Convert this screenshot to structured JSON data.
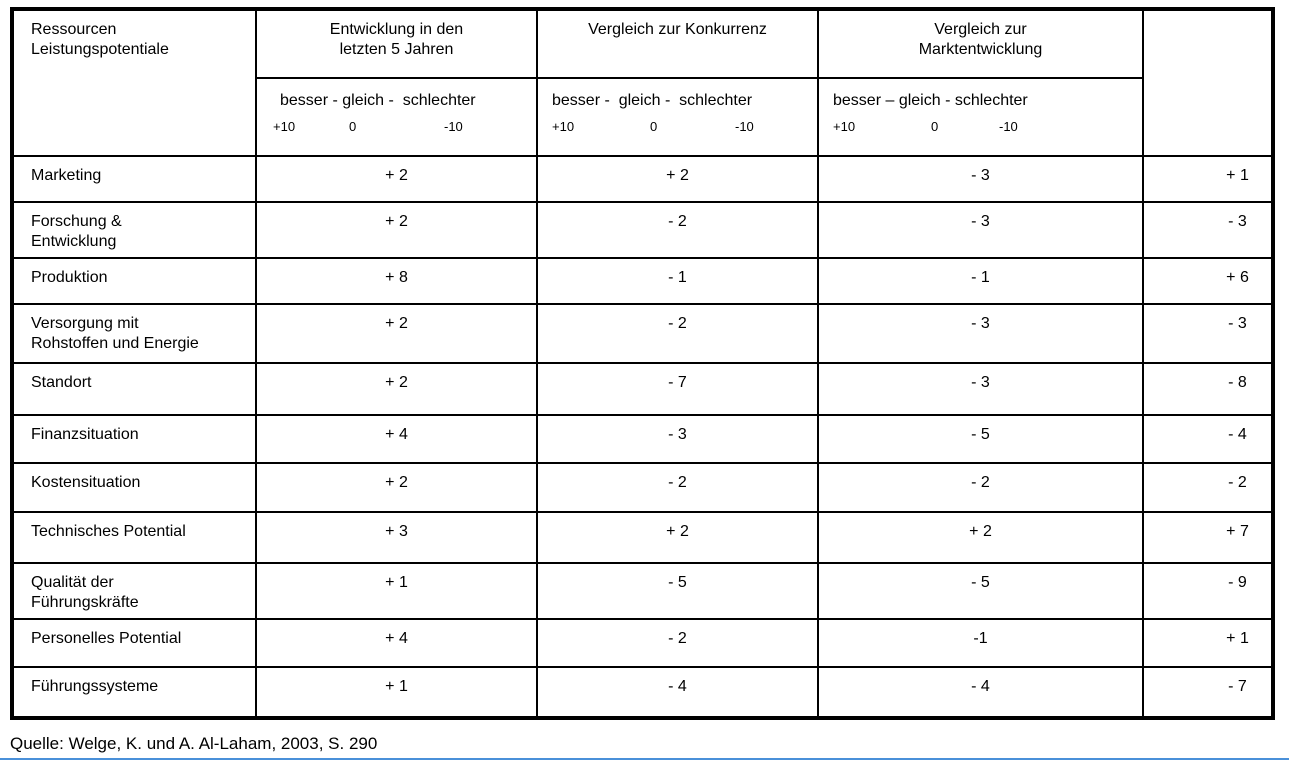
{
  "header": {
    "col1_line1": "Ressourcen",
    "col1_line2": "Leistungspotentiale",
    "col2_line1": "Entwicklung in den",
    "col2_line2": "letzten 5 Jahren",
    "col3_line1": "Vergleich zur Konkurrenz",
    "col4_line1": "Vergleich zur",
    "col4_line2": "Marktentwicklung"
  },
  "scales": {
    "col2": {
      "words": "besser - gleich -  schlechter",
      "plus": "+10",
      "zero": "0",
      "minus": "-10"
    },
    "col3": {
      "words": "besser -  gleich -  schlechter",
      "plus": "+10",
      "zero": "0",
      "minus": "-10"
    },
    "col4": {
      "words": "besser – gleich - schlechter",
      "plus": "+10",
      "zero": "0",
      "minus": "-10"
    }
  },
  "rows": [
    {
      "label": "Marketing",
      "label2": "",
      "v1": "+ 2",
      "v2": "+ 2",
      "v3": "- 3",
      "total": "+ 1"
    },
    {
      "label": "Forschung &",
      "label2": "Entwicklung",
      "v1": "+ 2",
      "v2": "- 2",
      "v3": "- 3",
      "total": "- 3"
    },
    {
      "label": "Produktion",
      "label2": "",
      "v1": "+ 8",
      "v2": "- 1",
      "v3": "- 1",
      "total": "+ 6"
    },
    {
      "label": "Versorgung mit",
      "label2": "Rohstoffen und Energie",
      "v1": "+ 2",
      "v2": "- 2",
      "v3": "- 3",
      "total": "- 3"
    },
    {
      "label": "Standort",
      "label2": "",
      "v1": "+ 2",
      "v2": "- 7",
      "v3": "- 3",
      "total": "- 8"
    },
    {
      "label": "Finanzsituation",
      "label2": "",
      "v1": "+ 4",
      "v2": "- 3",
      "v3": "- 5",
      "total": "- 4"
    },
    {
      "label": "Kostensituation",
      "label2": "",
      "v1": "+ 2",
      "v2": "- 2",
      "v3": "- 2",
      "total": "- 2"
    },
    {
      "label": "Technisches Potential",
      "label2": "",
      "v1": "+ 3",
      "v2": "+ 2",
      "v3": "+ 2",
      "total": "+ 7"
    },
    {
      "label": "Qualität der",
      "label2": "Führungskräfte",
      "v1": "+ 1",
      "v2": "- 5",
      "v3": "- 5",
      "total": "-  9"
    },
    {
      "label": "Personelles Potential",
      "label2": "",
      "v1": "+ 4",
      "v2": "- 2",
      "v3": "-1",
      "total": "+ 1"
    },
    {
      "label": "Führungssysteme",
      "label2": "",
      "v1": "+ 1",
      "v2": "- 4",
      "v3": "- 4",
      "total": "- 7"
    }
  ],
  "source": "Quelle: Welge, K. und A. Al-Laham, 2003, S. 290"
}
